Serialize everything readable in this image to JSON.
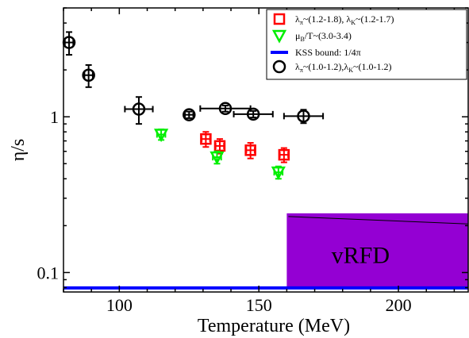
{
  "chart_data": {
    "type": "scatter",
    "xlabel": "Temperature (MeV)",
    "ylabel": "η/s",
    "xlim": [
      80,
      225
    ],
    "ylim": [
      0.075,
      5
    ],
    "yscale": "log",
    "xticks": [
      100,
      150,
      200
    ],
    "yticks": [
      0.1,
      1
    ],
    "ytick_labels": [
      "0.1",
      "1"
    ],
    "grid": false,
    "legend_position": "top-right",
    "colors": {
      "red": "#ff0000",
      "green": "#00ee00",
      "blue": "#0000ff",
      "black": "#000000",
      "purple": "#9400d3"
    },
    "series": [
      {
        "name_parts": [
          "λ",
          "π",
          "~(1.2-1.8), λ",
          "K",
          "~(1.2-1.7)"
        ],
        "marker": "square",
        "color": "#ff0000",
        "points": [
          {
            "x": 131,
            "y": 0.72,
            "yerr": 0.08,
            "xerr": 1.5
          },
          {
            "x": 136,
            "y": 0.65,
            "yerr": 0.07,
            "xerr": 1.5
          },
          {
            "x": 147,
            "y": 0.61,
            "yerr": 0.07,
            "xerr": 1.5
          },
          {
            "x": 159,
            "y": 0.57,
            "yerr": 0.06,
            "xerr": 1.5
          }
        ]
      },
      {
        "name_parts": [
          "μ",
          "B",
          "/T~(3.0-3.4)"
        ],
        "marker": "triangle-down",
        "color": "#00ee00",
        "points": [
          {
            "x": 115,
            "y": 0.77,
            "yerr": 0.06,
            "xerr": 1.5
          },
          {
            "x": 135,
            "y": 0.55,
            "yerr": 0.05,
            "xerr": 1.5
          },
          {
            "x": 157,
            "y": 0.44,
            "yerr": 0.04,
            "xerr": 1.5
          }
        ]
      },
      {
        "name_parts": [
          "KSS bound: 1/4π"
        ],
        "marker": "line",
        "color": "#0000ff",
        "y": 0.0796
      },
      {
        "name_parts": [
          "λ",
          "π",
          "~(1.0-1.2),λ",
          "K",
          "~(1.0-1.2)"
        ],
        "marker": "circle",
        "color": "#000000",
        "points": [
          {
            "x": 82,
            "y": 3.0,
            "yerr": 0.5,
            "xerr": 1.5
          },
          {
            "x": 89,
            "y": 1.85,
            "yerr": 0.3,
            "xerr": 1.5
          },
          {
            "x": 107,
            "y": 1.12,
            "yerr": 0.22,
            "xerr": 5
          },
          {
            "x": 125,
            "y": 1.03,
            "yerr": 0.05,
            "xerr": 1.5
          },
          {
            "x": 138,
            "y": 1.13,
            "yerr": 0.05,
            "xerr": 9
          },
          {
            "x": 148,
            "y": 1.04,
            "yerr": 0.05,
            "xerr": 7
          },
          {
            "x": 166,
            "y": 1.01,
            "yerr": 0.1,
            "xerr": 7
          }
        ]
      }
    ],
    "region": {
      "label": "vRFD",
      "color": "#9400d3",
      "x": [
        160,
        225
      ],
      "y": [
        0.0796,
        0.24
      ]
    }
  }
}
